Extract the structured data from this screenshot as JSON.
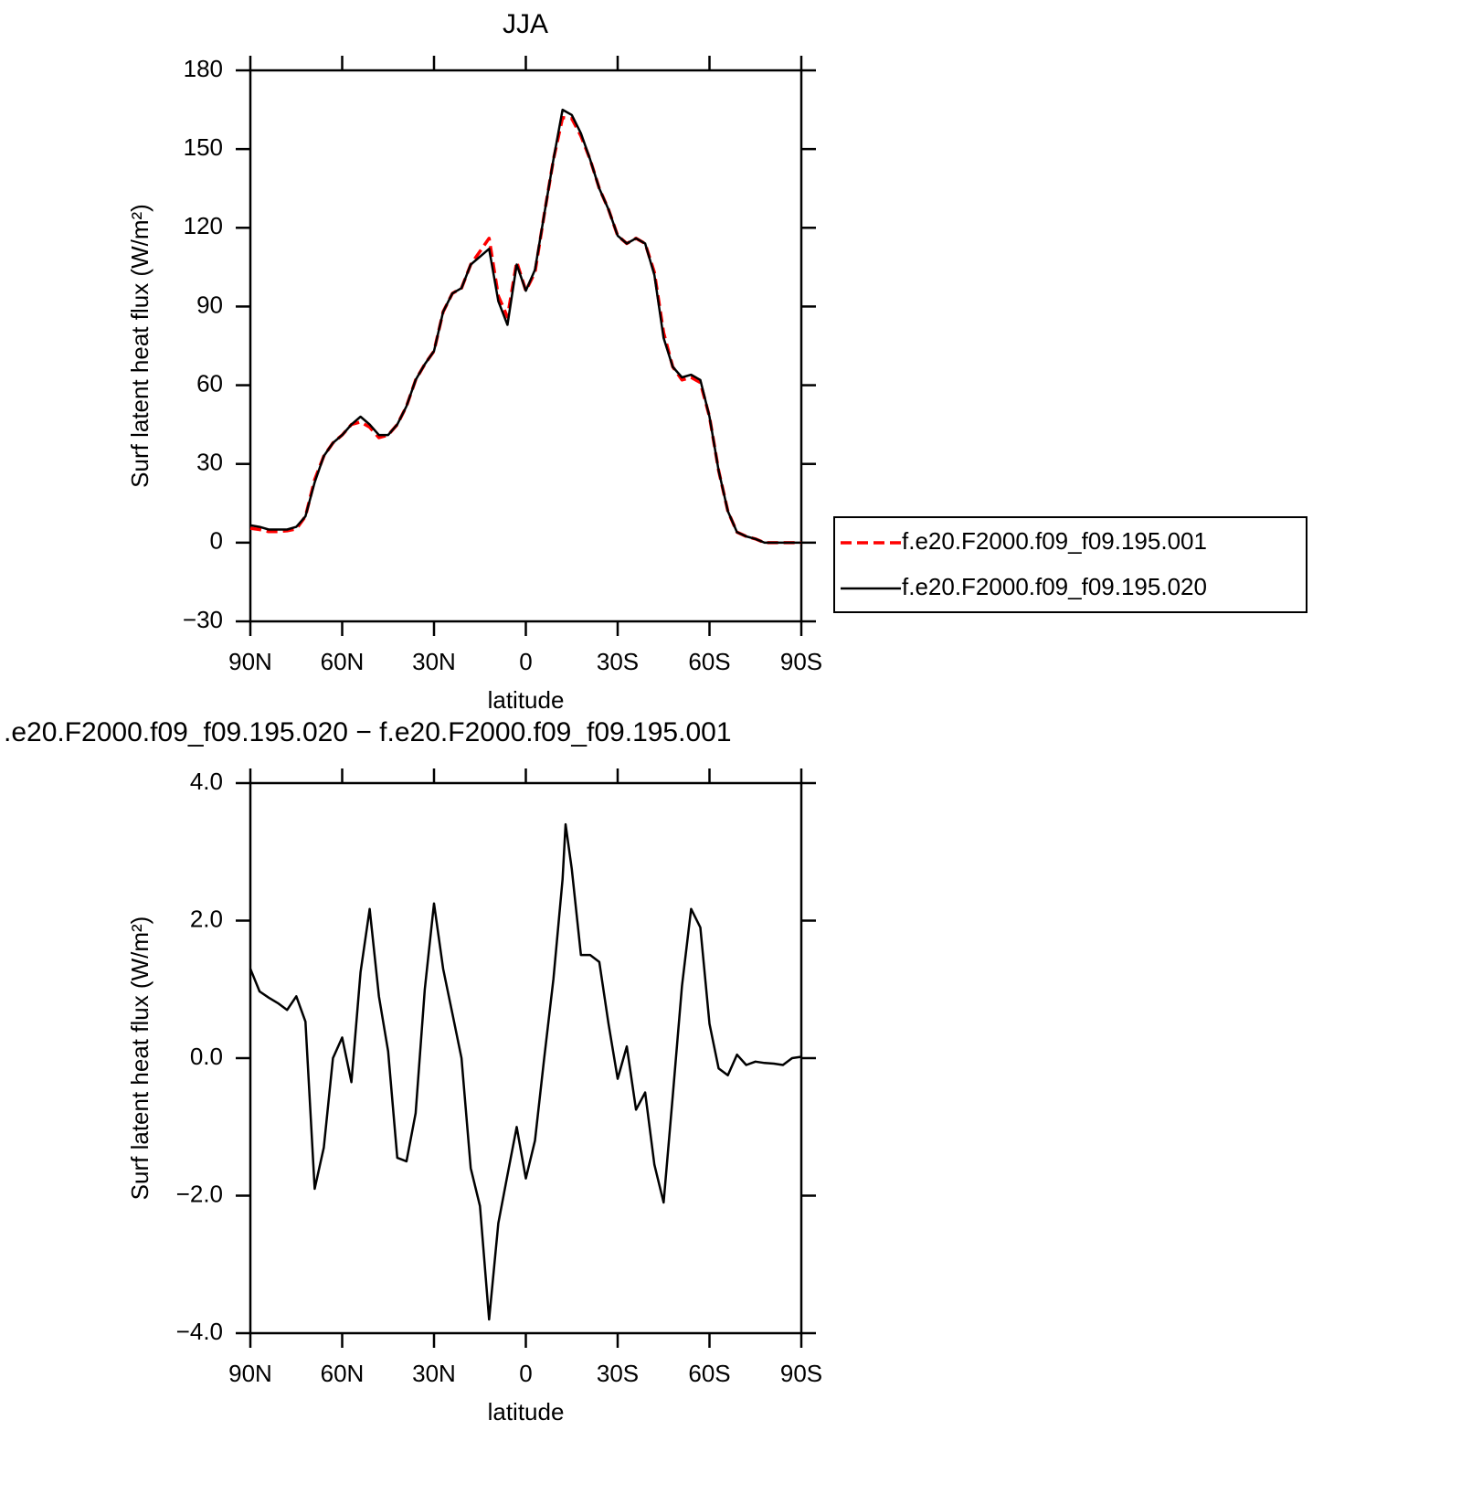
{
  "chart_data": [
    {
      "type": "line",
      "title": "JJA",
      "xlabel": "latitude",
      "ylabel": "Surf latent heat flux (W/m²)",
      "x": [
        90,
        87,
        84,
        81,
        78,
        75,
        72,
        69,
        66,
        63,
        60,
        57,
        54,
        51,
        48,
        45,
        42,
        39,
        36,
        33,
        30,
        27,
        24,
        21,
        18,
        15,
        12,
        9,
        6,
        3,
        0,
        -3,
        -6,
        -9,
        -12,
        -15,
        -18,
        -21,
        -24,
        -27,
        -30,
        -33,
        -36,
        -39,
        -42,
        -45,
        -48,
        -51,
        -54,
        -57,
        -60,
        -63,
        -66,
        -69,
        -72,
        -75,
        -78,
        -81,
        -84,
        -87,
        -90
      ],
      "xlim": [
        90,
        -90
      ],
      "xticks": [
        {
          "value": 90,
          "label": "90N"
        },
        {
          "value": 60,
          "label": "60N"
        },
        {
          "value": 30,
          "label": "30N"
        },
        0,
        {
          "value": -30,
          "label": "30S"
        },
        {
          "value": -60,
          "label": "60S"
        },
        {
          "value": -90,
          "label": "90S"
        }
      ],
      "ylim": [
        -30,
        180
      ],
      "yticks": [
        {
          "value": -30,
          "label": "−30"
        },
        0,
        30,
        60,
        90,
        120,
        150,
        180
      ],
      "legend": "right",
      "series": [
        {
          "name": "f.e20.F2000.f09_f09.195.001",
          "color": "#ff0000",
          "dash": true,
          "values": [
            5.5,
            5,
            4.2,
            4.2,
            4.5,
            5.2,
            10,
            24,
            33,
            38,
            41,
            45,
            46,
            44,
            40,
            41,
            45,
            52,
            62,
            68,
            73,
            88,
            95,
            97,
            106,
            111,
            116,
            94,
            86,
            107,
            96,
            103,
            125,
            146,
            162,
            161.6,
            155,
            146,
            135,
            127,
            117,
            114,
            116,
            114,
            103,
            80,
            67,
            62,
            63,
            61,
            48,
            27.5,
            12,
            4,
            2.4,
            1.4,
            0,
            0,
            0,
            0,
            0
          ]
        },
        {
          "name": "f.e20.F2000.f09_f09.195.020",
          "color": "#000000",
          "dash": false,
          "values": [
            6.6,
            6,
            5,
            5,
            5,
            6,
            10,
            23,
            33,
            38,
            41,
            45,
            48,
            45,
            41,
            41,
            45,
            52,
            62,
            68,
            73,
            88,
            95,
            97,
            106,
            109,
            112,
            92,
            83,
            106,
            96,
            104,
            125,
            146,
            165,
            163,
            156,
            146,
            135,
            127,
            117,
            114,
            116,
            114,
            102,
            78,
            67,
            63,
            64,
            62,
            48,
            27.5,
            12,
            4,
            2.4,
            1.4,
            0,
            0,
            0,
            0,
            0
          ]
        }
      ]
    },
    {
      "type": "line",
      "title": ".e20.F2000.f09_f09.195.020 − f.e20.F2000.f09_f09.195.001",
      "xlabel": "latitude",
      "ylabel": "Surf latent heat flux (W/m²)",
      "x": [
        90,
        87,
        84,
        81,
        78,
        75,
        72,
        69,
        66,
        63,
        60,
        57,
        54,
        51,
        48,
        45,
        42,
        39,
        36,
        33,
        30,
        27,
        24,
        21,
        18,
        15,
        12,
        9,
        6,
        3,
        0,
        -3,
        -6,
        -9,
        -12,
        -13,
        -15,
        -18,
        -21,
        -24,
        -27,
        -30,
        -33,
        -36,
        -39,
        -42,
        -45,
        -48,
        -51,
        -54,
        -57,
        -60,
        -63,
        -66,
        -69,
        -72,
        -75,
        -78,
        -81,
        -84,
        -87,
        -90
      ],
      "xlim": [
        90,
        -90
      ],
      "xticks": [
        {
          "value": 90,
          "label": "90N"
        },
        {
          "value": 60,
          "label": "60N"
        },
        {
          "value": 30,
          "label": "30N"
        },
        0,
        {
          "value": -30,
          "label": "30S"
        },
        {
          "value": -60,
          "label": "60S"
        },
        {
          "value": -90,
          "label": "90S"
        }
      ],
      "ylim": [
        -4,
        4
      ],
      "yticks": [
        {
          "value": -4,
          "label": "−4.0"
        },
        {
          "value": -2,
          "label": "−2.0"
        },
        {
          "value": 0,
          "label": "0.0"
        },
        {
          "value": 2,
          "label": "2.0"
        },
        {
          "value": 4,
          "label": "4.0"
        }
      ],
      "series": [
        {
          "color": "#000000",
          "dash": false,
          "values": [
            1.3,
            0.97,
            0.88,
            0.8,
            0.7,
            0.9,
            0.53,
            -1.9,
            -1.3,
            0,
            0.3,
            -0.35,
            1.25,
            2.17,
            0.9,
            0.1,
            -1.45,
            -1.5,
            -0.8,
            1.0,
            2.25,
            1.3,
            0.65,
            0,
            -1.6,
            -2.15,
            -3.8,
            -2.4,
            -1.7,
            -1.0,
            -1.75,
            -1.2,
            0,
            1.15,
            2.6,
            3.4,
            2.75,
            1.5,
            1.5,
            1.4,
            0.5,
            -0.3,
            0.17,
            -0.75,
            -0.5,
            -1.55,
            -2.1,
            -0.55,
            1.05,
            2.17,
            1.9,
            0.5,
            -0.15,
            -0.25,
            0.05,
            -0.1,
            -0.05,
            -0.07,
            -0.08,
            -0.1,
            0,
            0.02
          ]
        }
      ]
    }
  ]
}
